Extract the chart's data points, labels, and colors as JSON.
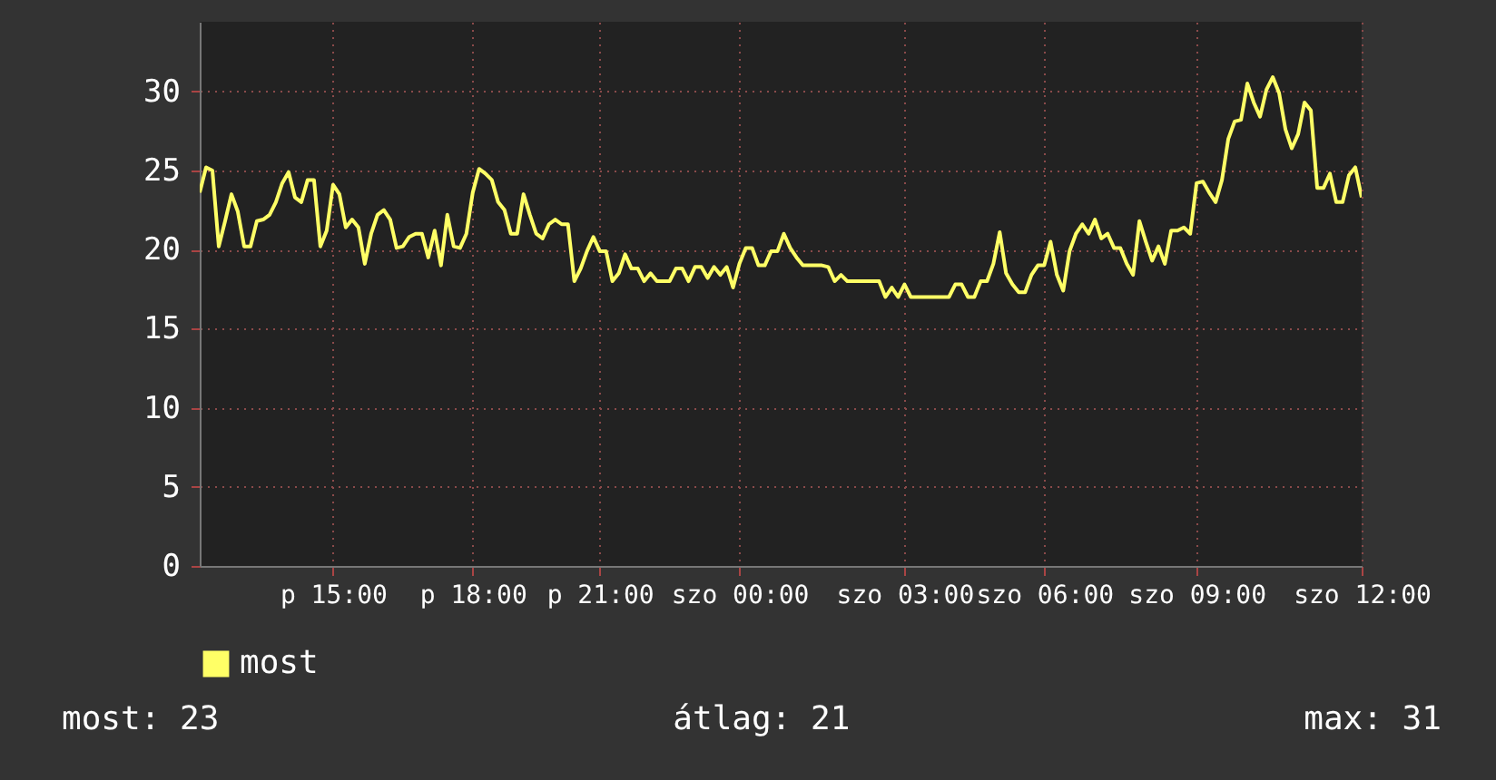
{
  "chart_data": {
    "type": "line",
    "categories": [
      null,
      null,
      null,
      null,
      null,
      null,
      null,
      null,
      null,
      null,
      null,
      null,
      null,
      null,
      null,
      null,
      null,
      null,
      null,
      null,
      null,
      "p 15:00",
      null,
      null,
      null,
      null,
      null,
      null,
      null,
      null,
      null,
      null,
      null,
      null,
      null,
      null,
      null,
      null,
      null,
      null,
      null,
      null,
      null,
      "p 18:00",
      null,
      null,
      null,
      null,
      null,
      null,
      null,
      null,
      null,
      null,
      null,
      null,
      null,
      null,
      null,
      null,
      null,
      null,
      null,
      "p 21:00",
      null,
      null,
      null,
      null,
      null,
      null,
      null,
      null,
      null,
      null,
      null,
      null,
      null,
      null,
      null,
      null,
      null,
      null,
      null,
      null,
      null,
      "szo 00:00",
      null,
      null,
      null,
      null,
      null,
      null,
      null,
      null,
      null,
      null,
      null,
      null,
      null,
      null,
      null,
      null,
      null,
      null,
      null,
      null,
      null,
      null,
      null,
      null,
      null,
      "szo 03:00",
      null,
      null,
      null,
      null,
      null,
      null,
      null,
      null,
      null,
      null,
      null,
      null,
      null,
      null,
      null,
      null,
      null,
      null,
      null,
      null,
      null,
      "szo 06:00",
      null,
      null,
      null,
      null,
      null,
      null,
      null,
      null,
      null,
      null,
      null,
      null,
      null,
      null,
      null,
      null,
      null,
      null,
      null,
      null,
      null,
      null,
      null,
      "szo 09:00",
      null,
      null,
      null,
      null,
      null,
      null,
      null,
      null,
      null,
      null,
      null,
      null,
      null,
      null,
      null,
      null,
      null,
      null,
      null,
      null,
      null,
      null,
      null,
      null,
      null,
      "szo 12:00"
    ],
    "series": [
      {
        "name": "most",
        "color": "#ffff66",
        "values": [
          23.6,
          25.2,
          25,
          20.2,
          21.8,
          23.5,
          22.4,
          20.2,
          20.2,
          21.8,
          21.9,
          22.2,
          23,
          24.2,
          24.9,
          23.3,
          23,
          24.4,
          24.4,
          20.2,
          21.2,
          24.1,
          23.5,
          21.4,
          21.9,
          21.4,
          19.1,
          21,
          22.2,
          22.5,
          21.9,
          20.1,
          20.2,
          20.8,
          21,
          21,
          19.5,
          21.2,
          19,
          22.2,
          20.2,
          20.1,
          21,
          23.6,
          25.1,
          24.8,
          24.4,
          23,
          22.5,
          21,
          21,
          23.5,
          22.2,
          21,
          20.7,
          21.6,
          21.9,
          21.6,
          21.6,
          18,
          18.8,
          19.9,
          20.8,
          19.9,
          19.9,
          18,
          18.5,
          19.7,
          18.8,
          18.8,
          18,
          18.5,
          18,
          18,
          18,
          18.8,
          18.8,
          18,
          18.9,
          18.9,
          18.2,
          18.9,
          18.4,
          18.9,
          17.6,
          19.1,
          20.1,
          20.1,
          19,
          19,
          19.9,
          19.9,
          21,
          20.1,
          19.5,
          19,
          19,
          19,
          19,
          18.9,
          18,
          18.4,
          18,
          18,
          18,
          18,
          18,
          18,
          17,
          17.6,
          17,
          17.8,
          17,
          17,
          17,
          17,
          17,
          17,
          17,
          17.8,
          17.8,
          17,
          17,
          18,
          18,
          19.1,
          21.1,
          18.5,
          17.8,
          17.3,
          17.3,
          18.4,
          19,
          19,
          20.5,
          18.4,
          17.4,
          19.9,
          21,
          21.6,
          21,
          21.9,
          20.7,
          21,
          20.1,
          20.1,
          19.1,
          18.4,
          21.8,
          20.5,
          19.3,
          20.2,
          19.1,
          21.2,
          21.2,
          21.4,
          21,
          24.2,
          24.3,
          23.6,
          23,
          24.4,
          27,
          28.1,
          28.2,
          30.5,
          29.3,
          28.4,
          30.1,
          30.9,
          29.9,
          27.6,
          26.4,
          27.3,
          29.3,
          28.8,
          23.9,
          23.9,
          24.8,
          23,
          23,
          24.7,
          25.2,
          23.3
        ]
      }
    ],
    "ylim": [
      0,
      34.4
    ],
    "yticks": [
      0,
      5,
      10,
      15,
      20,
      25,
      30
    ],
    "grid": true,
    "legend": "bottom left",
    "annotations": [
      "most: 23",
      "átlag: 21",
      "max: 31"
    ]
  }
}
